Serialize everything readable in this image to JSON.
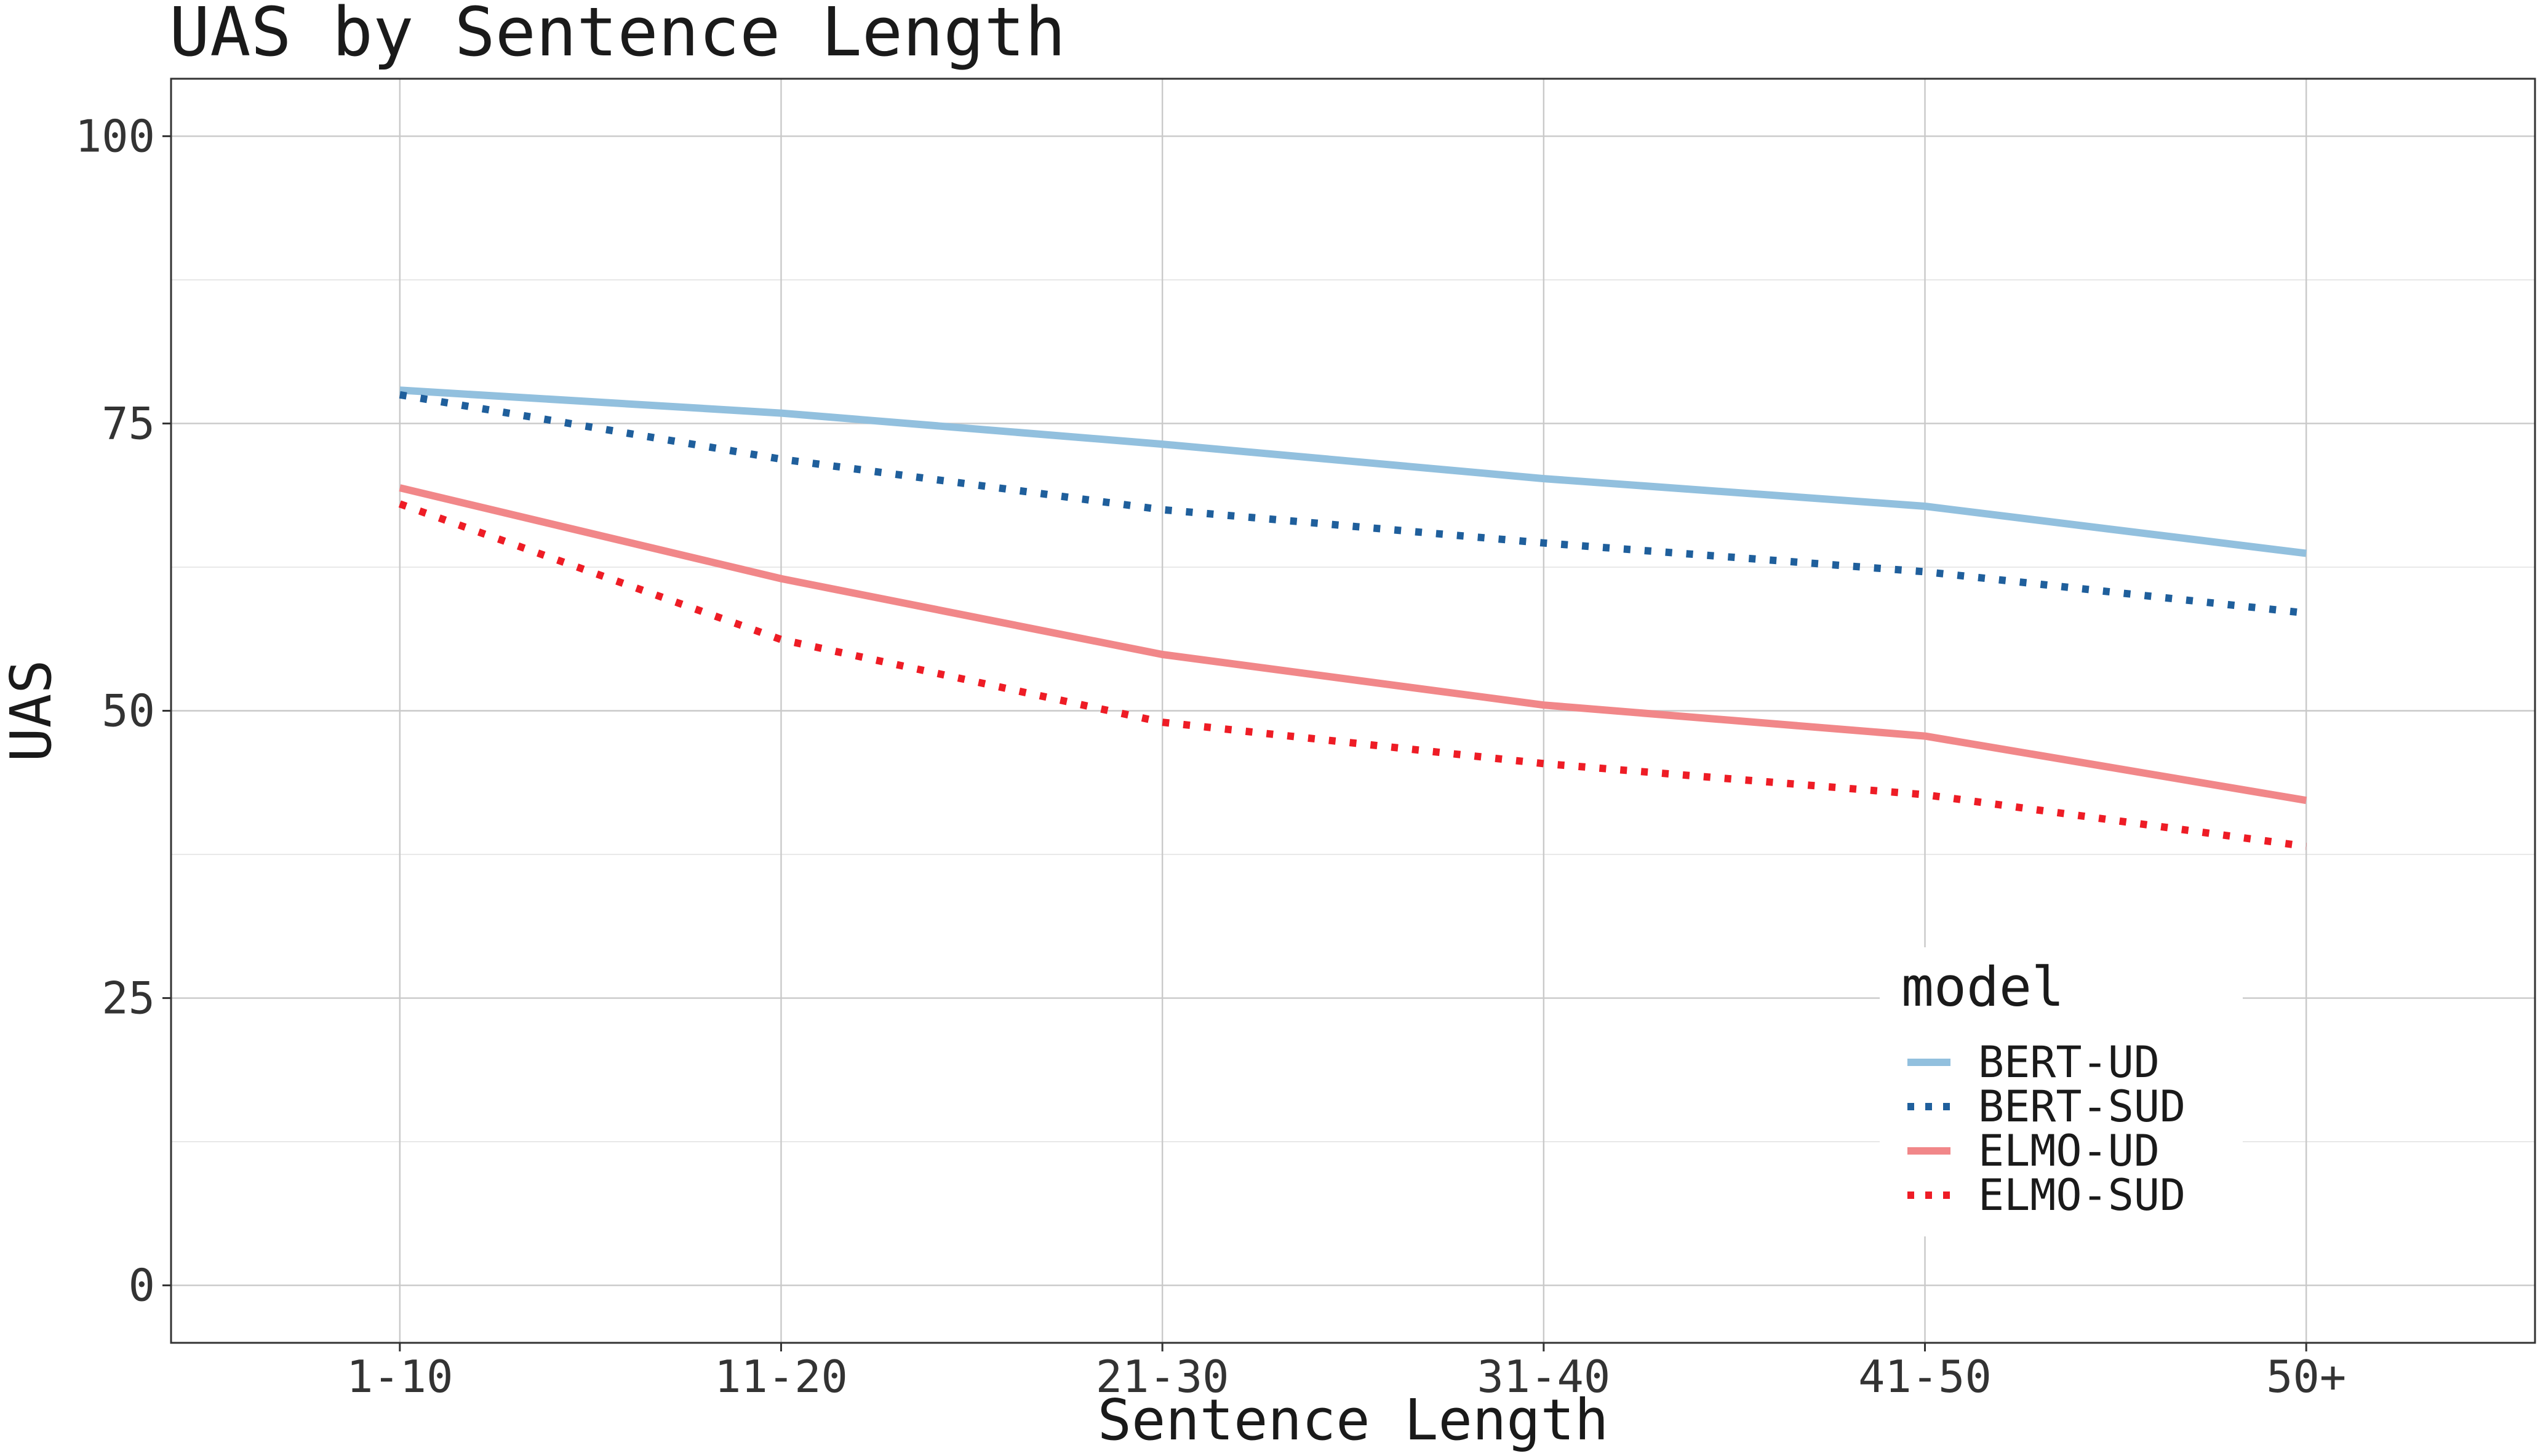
{
  "chart_data": {
    "type": "line",
    "title": "UAS by Sentence Length",
    "xlabel": "Sentence Length",
    "ylabel": "UAS",
    "categories": [
      "1-10",
      "11-20",
      "21-30",
      "31-40",
      "41-50",
      "50+"
    ],
    "ylim": [
      -5,
      105
    ],
    "yticks": [
      0,
      25,
      50,
      75,
      100
    ],
    "grid": true,
    "legend": {
      "title": "model",
      "position": "bottom-right"
    },
    "series": [
      {
        "name": "BERT-UD",
        "values": [
          77.9,
          75.9,
          73.2,
          70.2,
          67.8,
          63.7
        ],
        "color": "#92c0de",
        "dash": "solid"
      },
      {
        "name": "BERT-SUD",
        "values": [
          77.5,
          71.9,
          67.5,
          64.6,
          62.1,
          58.5
        ],
        "color": "#1f5f9c",
        "dash": "dotted"
      },
      {
        "name": "ELMO-UD",
        "values": [
          69.4,
          61.5,
          54.9,
          50.5,
          47.8,
          42.2
        ],
        "color": "#f18789",
        "dash": "solid"
      },
      {
        "name": "ELMO-SUD",
        "values": [
          68.0,
          56.2,
          49.0,
          45.4,
          42.7,
          38.2
        ],
        "color": "#ee1c25",
        "dash": "dotted"
      }
    ]
  }
}
